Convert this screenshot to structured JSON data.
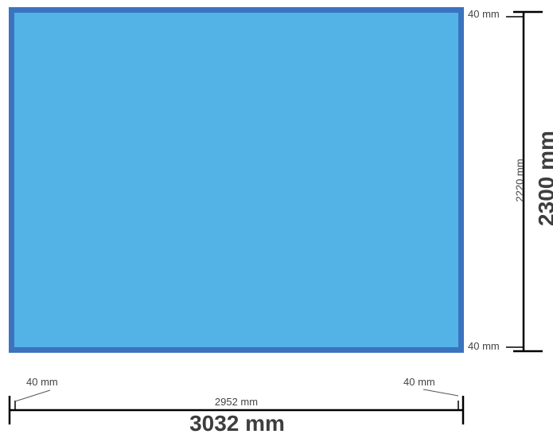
{
  "drawing": {
    "frame_color": "#3b73bf",
    "fill_color": "#53b2e6",
    "line_color": "#000000",
    "text_color": "#444444"
  },
  "vertical": {
    "top_margin": "40 mm",
    "bottom_margin": "40 mm",
    "inner": "2220 mm",
    "total": "2300 mm"
  },
  "horizontal": {
    "left_margin": "40 mm",
    "right_margin": "40 mm",
    "inner": "2952 mm",
    "total": "3032 mm"
  }
}
